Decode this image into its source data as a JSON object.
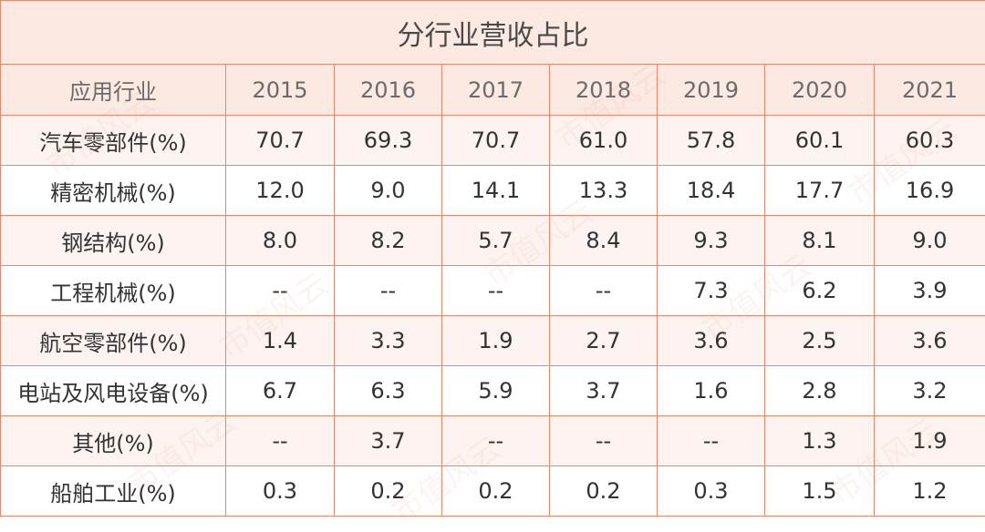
{
  "table": {
    "title": "分行业营收占比",
    "header": [
      "应用行业",
      "2015",
      "2016",
      "2017",
      "2018",
      "2019",
      "2020",
      "2021"
    ],
    "rows": [
      {
        "label": "汽车零部件(%)",
        "values": [
          "70.7",
          "69.3",
          "70.7",
          "61.0",
          "57.8",
          "60.1",
          "60.3"
        ]
      },
      {
        "label": "精密机械(%)",
        "values": [
          "12.0",
          "9.0",
          "14.1",
          "13.3",
          "18.4",
          "17.7",
          "16.9"
        ]
      },
      {
        "label": "钢结构(%)",
        "values": [
          "8.0",
          "8.2",
          "5.7",
          "8.4",
          "9.3",
          "8.1",
          "9.0"
        ]
      },
      {
        "label": "工程机械(%)",
        "values": [
          "--",
          "--",
          "--",
          "--",
          "7.3",
          "6.2",
          "3.9"
        ]
      },
      {
        "label": "航空零部件(%)",
        "values": [
          "1.4",
          "3.3",
          "1.9",
          "2.7",
          "3.6",
          "2.5",
          "3.6"
        ]
      },
      {
        "label": "电站及风电设备(%)",
        "values": [
          "6.7",
          "6.3",
          "5.9",
          "3.7",
          "1.6",
          "2.8",
          "3.2"
        ]
      },
      {
        "label": "其他(%)",
        "values": [
          "--",
          "3.7",
          "--",
          "--",
          "--",
          "1.3",
          "1.9"
        ]
      },
      {
        "label": "船舶工业(%)",
        "values": [
          "0.3",
          "0.2",
          "0.2",
          "0.2",
          "0.3",
          "1.5",
          "1.2"
        ]
      }
    ]
  },
  "watermark": "市值风云",
  "colors": {
    "border": "#e8876c",
    "header_bg": "#fbe9e2",
    "alt_row_bg": "#fdf4f1"
  }
}
